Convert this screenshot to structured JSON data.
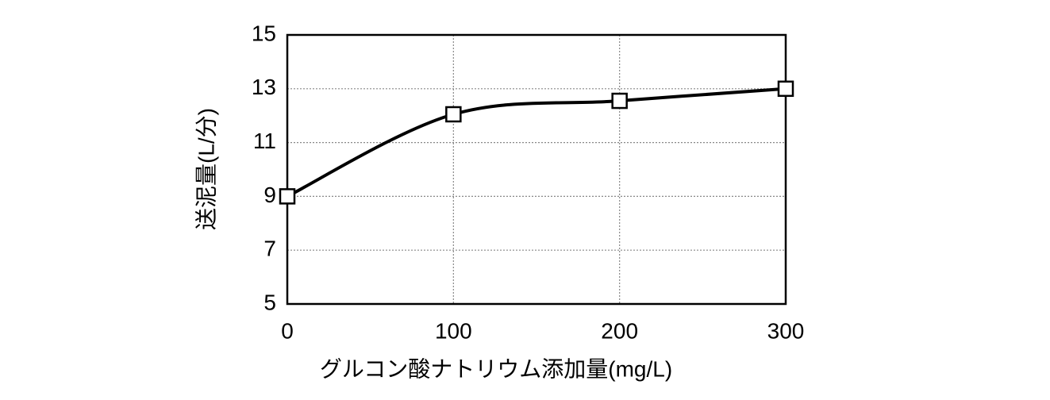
{
  "chart_data": {
    "type": "line",
    "xlabel": "グルコン酸ナトリウム添加量(mg/L)",
    "ylabel": "送泥量(L/分)",
    "x": [
      0,
      100,
      200,
      300
    ],
    "values": [
      9,
      12.05,
      12.55,
      13
    ],
    "color": "#000000",
    "xlim": [
      0,
      300
    ],
    "xticks": [
      0,
      100,
      200,
      300
    ],
    "ylim": [
      5,
      15
    ],
    "yticks": [
      5,
      7,
      9,
      11,
      13,
      15
    ],
    "grid": true
  }
}
